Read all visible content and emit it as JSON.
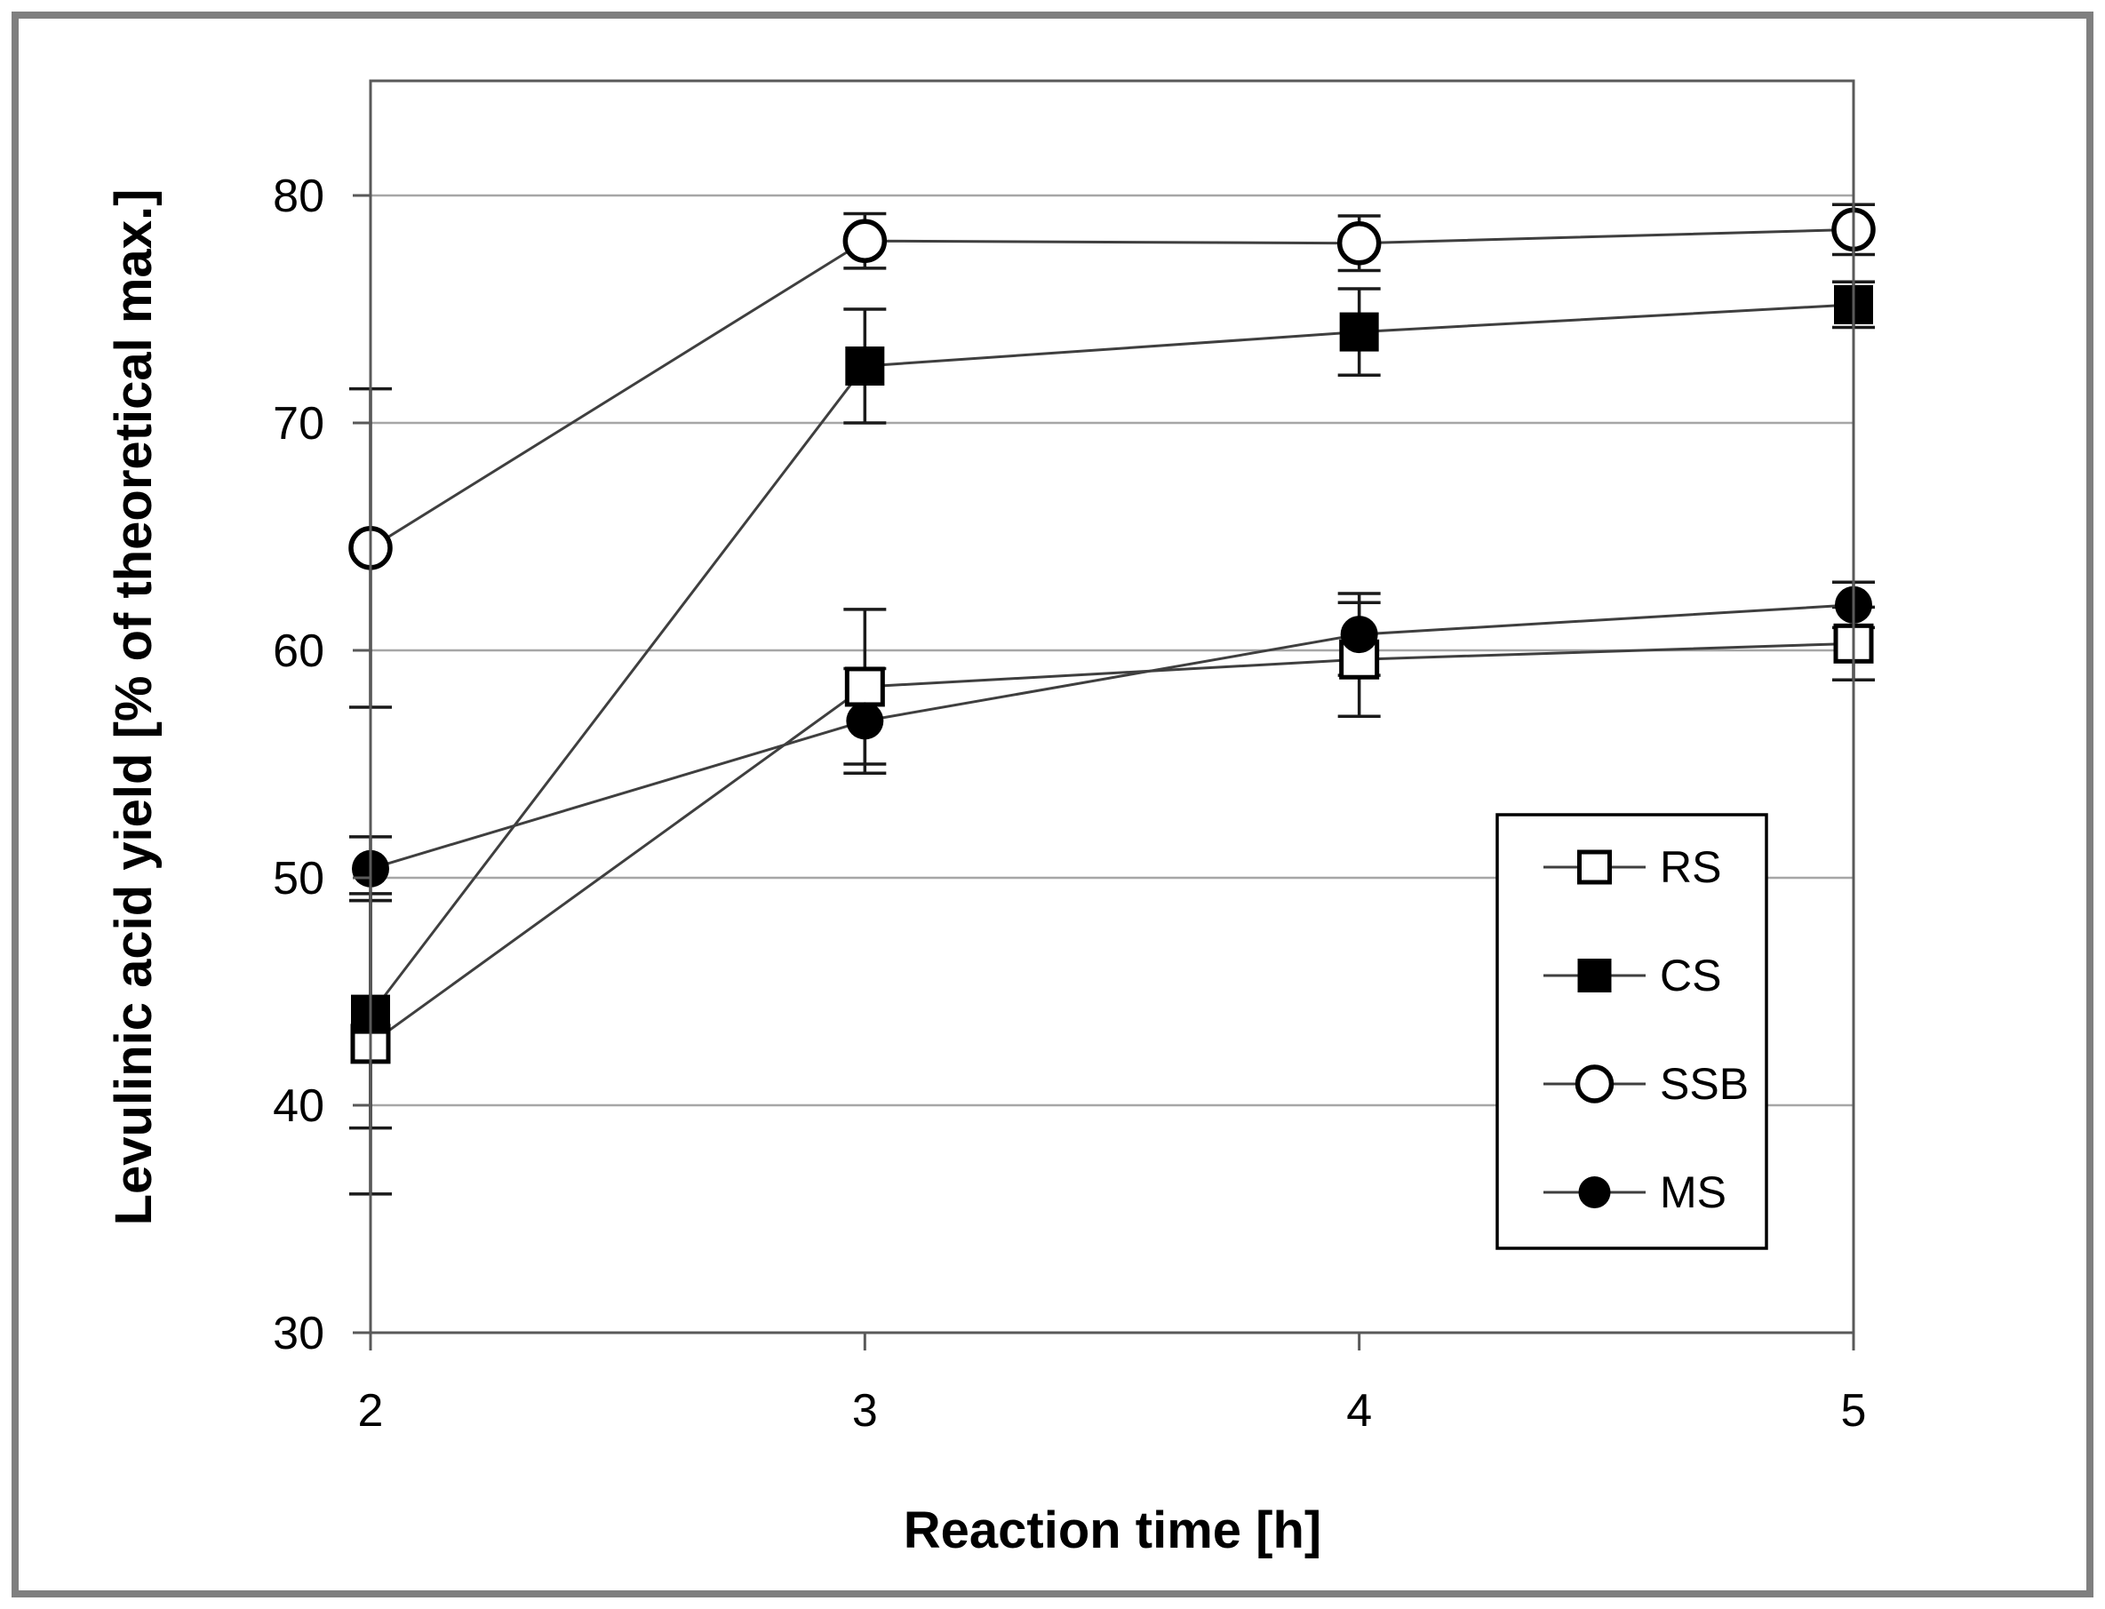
{
  "chart_data": {
    "type": "line",
    "title": "",
    "xlabel": "Reaction time [h]",
    "ylabel": "Levulinic acid yield [% of theoretical max.]",
    "x": [
      2,
      3,
      4,
      5
    ],
    "xticks": [
      2,
      3,
      4,
      5
    ],
    "yticks": [
      30,
      40,
      50,
      60,
      70,
      80
    ],
    "xlim": [
      2,
      5
    ],
    "ylim": [
      30,
      85
    ],
    "grid": true,
    "legend_position": "inside-right-bottom",
    "legend_order": [
      "RS",
      "CS",
      "SSB",
      "MS"
    ],
    "series": [
      {
        "name": "RS",
        "marker": "open-square",
        "values": [
          42.7,
          58.4,
          59.6,
          60.3
        ],
        "errors": [
          6.6,
          3.4,
          2.5,
          1.6
        ]
      },
      {
        "name": "CS",
        "marker": "filled-square",
        "values": [
          44.0,
          72.5,
          74.0,
          75.2
        ],
        "errors": [
          5.0,
          2.5,
          1.9,
          1.0
        ]
      },
      {
        "name": "SSB",
        "marker": "open-circle",
        "values": [
          64.5,
          78.0,
          77.9,
          78.5
        ],
        "errors": [
          7.0,
          1.2,
          1.2,
          1.1
        ]
      },
      {
        "name": "MS",
        "marker": "filled-circle",
        "values": [
          50.4,
          56.9,
          60.7,
          62.0
        ],
        "errors": [
          1.4,
          2.3,
          1.8,
          1.0
        ]
      }
    ]
  },
  "colors": {
    "background": "#ffffff",
    "frame_border": "#7f7f7f",
    "plot_border": "#595959",
    "gridline": "#a6a6a6",
    "series_line": "#3f3f3f",
    "marker_stroke": "#000000",
    "error_bar": "#1a1a1a",
    "text": "#000000"
  }
}
